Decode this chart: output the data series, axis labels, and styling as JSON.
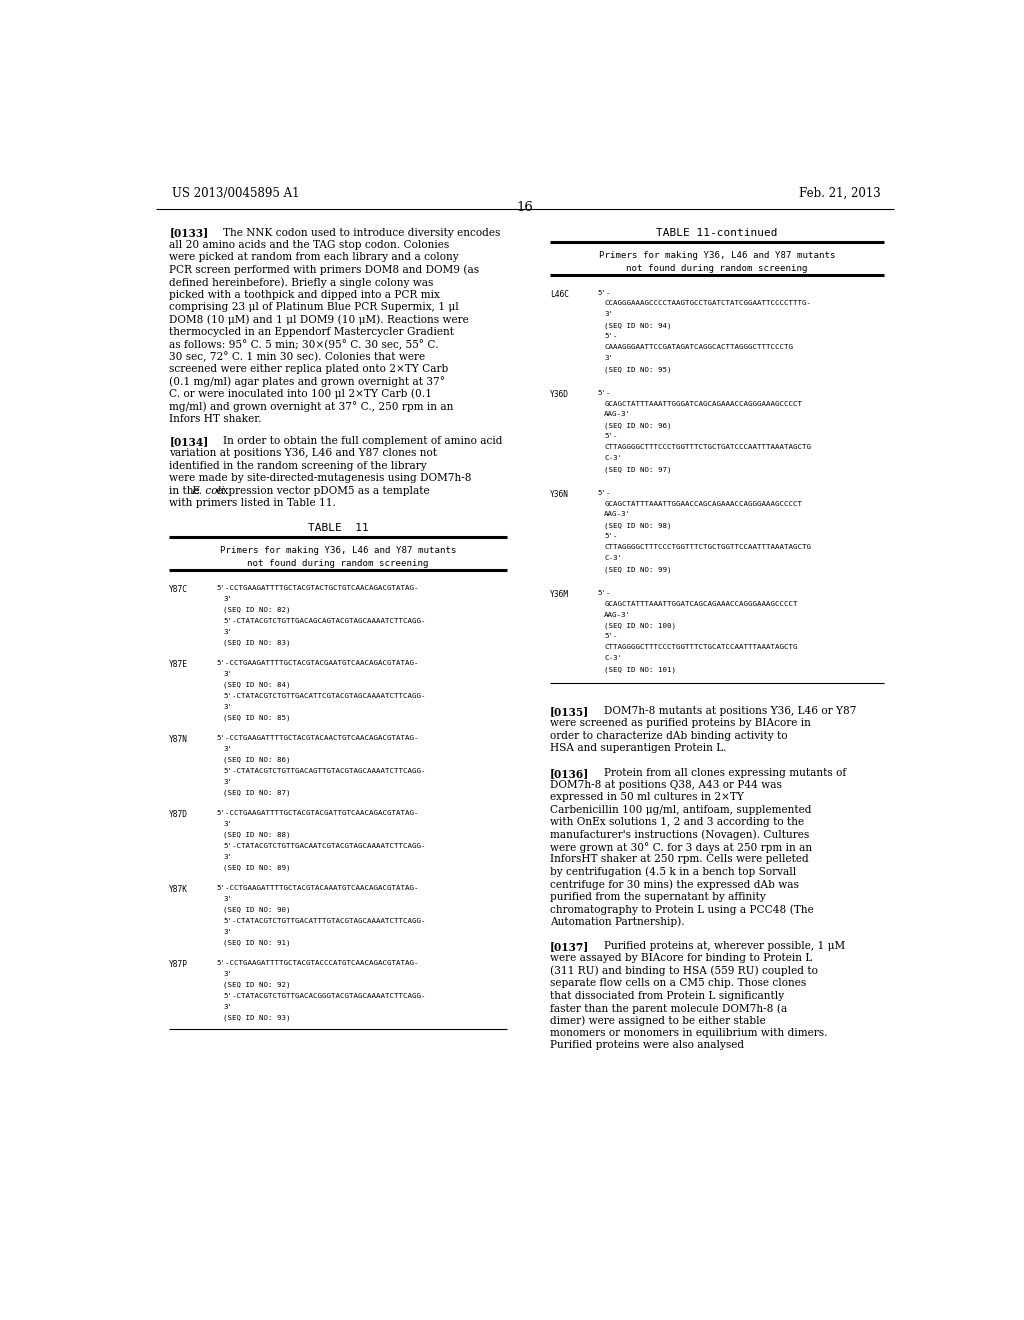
{
  "bg_color": "#ffffff",
  "header_left": "US 2013/0045895 A1",
  "header_right": "Feb. 21, 2013",
  "page_number": "16",
  "paragraph_0133_tag": "[0133]",
  "paragraph_0133": "The NNK codon used to introduce diversity encodes all 20 amino acids and the TAG stop codon. Colonies were picked at random from each library and a colony PCR screen performed with primers DOM8 and DOM9 (as defined hereinbefore). Briefly a single colony was picked with a toothpick and dipped into a PCR mix comprising 23 μl of Platinum Blue PCR Supermix, 1 μl DOM8 (10 μM) and 1 μl DOM9 (10 μM). Reactions were thermocycled in an Eppendorf Mastercycler Gradient as follows: 95° C. 5 min; 30×(95° C. 30 sec, 55° C. 30 sec, 72° C. 1 min 30 sec). Colonies that were screened were either replica plated onto 2×TY Carb (0.1 mg/ml) agar plates and grown overnight at 37° C. or were inoculated into 100 μl 2×TY Carb (0.1 mg/ml) and grown overnight at 37° C., 250 rpm in an Infors HT shaker.",
  "paragraph_0134_tag": "[0134]",
  "paragraph_0134": "In order to obtain the full complement of amino acid variation at positions Y36, L46 and Y87 clones not identified in the random screening of the library were made by site-directed-mutagenesis using DOM7h-8 in the E. coli expression vector pDOM5 as a template with primers listed in Table 11.",
  "table11_title": "TABLE  11",
  "table11_subtitle1": "Primers for making Y36, L46 and Y87 mutants",
  "table11_subtitle2": "not found during random screening",
  "table11_continued_title": "TABLE 11-continued",
  "table11_continued_sub1": "Primers for making Y36, L46 and Y87 mutants",
  "table11_continued_sub2": "not found during random screening",
  "table_entries_left": [
    {
      "label": "Y87C",
      "lines": [
        "5'-CCTGAAGATTTTGCTACGTACTGCTGTCAACAGACGTATAG-",
        "3'",
        "(SEQ ID NO: 82)",
        "5'-CTATACGTCTGTTGACAGCAGTACGTAGCAAAATCTTCAGG-",
        "3'",
        "(SEQ ID NO: 83)"
      ]
    },
    {
      "label": "Y87E",
      "lines": [
        "5'-CCTGAAGATTTTGCTACGTACGAATGTCAACAGACGTATAG-",
        "3'",
        "(SEQ ID NO: 84)",
        "5'-CTATACGTCTGTTGACATTCGTACGTAGCAAAATCTTCAGG-",
        "3'",
        "(SEQ ID NO: 85)"
      ]
    },
    {
      "label": "Y87N",
      "lines": [
        "5'-CCTGAAGATTTTGCTACGTACAACTGTCAACAGACGTATAG-",
        "3'",
        "(SEQ ID NO: 86)",
        "5'-CTATACGTCTGTTGACAGTTGTACGTAGCAAAATCTTCAGG-",
        "3'",
        "(SEQ ID NO: 87)"
      ]
    },
    {
      "label": "Y87D",
      "lines": [
        "5'-CCTGAAGATTTTGCTACGTACGATTGTCAACAGACGTATAG-",
        "3'",
        "(SEQ ID NO: 88)",
        "5'-CTATACGTCTGTTGACAATCGTACGTAGCAAAATCTTCAGG-",
        "3'",
        "(SEQ ID NO: 89)"
      ]
    },
    {
      "label": "Y87K",
      "lines": [
        "5'-CCTGAAGATTTTGCTACGTACAAATGTCAACAGACGTATAG-",
        "3'",
        "(SEQ ID NO: 90)",
        "5'-CTATACGTCTGTTGACATTTGTACGTAGCAAAATCTTCAGG-",
        "3'",
        "(SEQ ID NO: 91)"
      ]
    },
    {
      "label": "Y87P",
      "lines": [
        "5'-CCTGAAGATTTTGCTACGTACCCATGTCAACAGACGTATAG-",
        "3'",
        "(SEQ ID NO: 92)",
        "5'-CTATACGTCTGTTGACACGGGTACGTAGCAAAATCTTCAGG-",
        "3'",
        "(SEQ ID NO: 93)"
      ]
    }
  ],
  "table_entries_right": [
    {
      "label": "L46C",
      "lines": [
        "5'-",
        "CCAGGGAAAGCCCCTAAGTGCCTGATCTATCGGAATTCCCCTTTG-",
        "3'",
        "(SEQ ID NO: 94)",
        "5'-",
        "CAAAGGGAATTCCGATAGATCAGGCACTTAGGGCTTTCCCTG",
        "3'",
        "(SEQ ID NO: 95)"
      ]
    },
    {
      "label": "Y36D",
      "lines": [
        "5'-",
        "GCAGCTATTTAAATTGGGATCAGCAGAAACCAGGGAAAGCCCCT",
        "AAG-3'",
        "(SEQ ID NO: 96)",
        "5'-",
        "CTTAGGGGCTTTCCCTGGTTTCTGCTGATCCCAATTTAAATAGCTG",
        "C-3'",
        "(SEQ ID NO: 97)"
      ]
    },
    {
      "label": "Y36N",
      "lines": [
        "5'-",
        "GCAGCTATTTAAATTGGAACCAGCAGAAACCAGGGAAAGCCCCT",
        "AAG-3'",
        "(SEQ ID NO: 98)",
        "5'-",
        "CTTAGGGGCTTTCCCTGGTTTCTGCTGGTTCCAATTTAAATAGCTG",
        "C-3'",
        "(SEQ ID NO: 99)"
      ]
    },
    {
      "label": "Y36M",
      "lines": [
        "5'-",
        "GCAGCTATTTAAATTGGATCAGCAGAAACCAGGGAAAGCCCCT",
        "AAG-3'",
        "(SEQ ID NO: 100)",
        "5'-",
        "CTTAGGGGCTTTCCCTGGTTTCTGCATCCAATTTAAATAGCTG",
        "C-3'",
        "(SEQ ID NO: 101)"
      ]
    }
  ],
  "paragraph_0135_tag": "[0135]",
  "paragraph_0135": "DOM7h-8 mutants at positions Y36, L46 or Y87 were screened as purified proteins by BIAcore in order to characterize dAb binding activity to HSA and superantigen Protein L.",
  "paragraph_0136_tag": "[0136]",
  "paragraph_0136": "Protein from all clones expressing mutants of DOM7h-8 at positions Q38, A43 or P44 was expressed in 50 ml cultures in 2×TY Carbenicillin 100 μg/ml, antifoam, supplemented with OnEx solutions 1, 2 and 3 according to the manufacturer's instructions (Novagen). Cultures were grown at 30° C. for 3 days at 250 rpm in an InforsHT shaker at 250 rpm. Cells were pelleted by centrifugation (4.5 k in a bench top Sorvall centrifuge for 30 mins) the expressed dAb was purified from the supernatant by affinity chromatography to Protein L using a PCC48 (The Automation Partnership).",
  "paragraph_0137_tag": "[0137]",
  "paragraph_0137": "Purified proteins at, wherever possible, 1 μM were assayed by BIAcore for binding to Protein L (311 RU) and binding to HSA (559 RU) coupled to separate flow cells on a CM5 chip. Those clones that dissociated from Protein L significantly faster than the parent molecule DOM7h-8 (a dimer) were assigned to be either stable monomers or monomers in equilibrium with dimers. Purified proteins were also analysed"
}
